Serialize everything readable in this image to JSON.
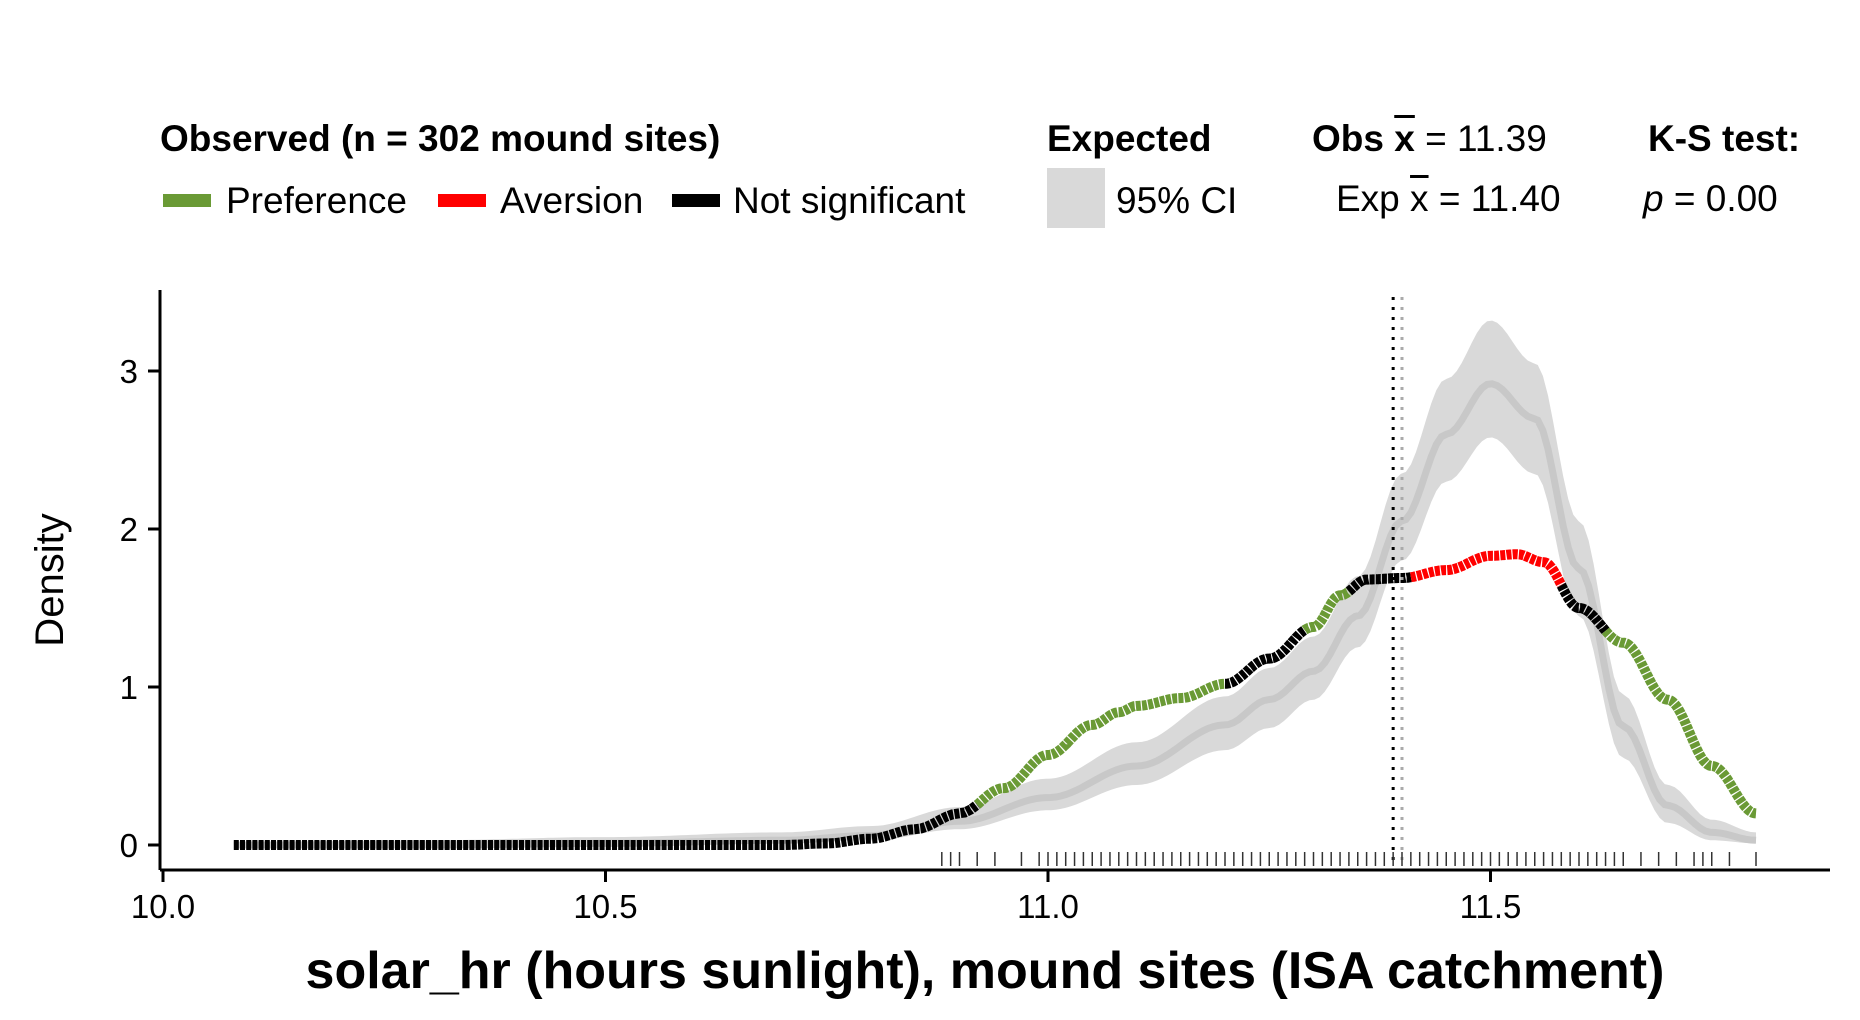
{
  "legend": {
    "observed_title": "Observed (n = 302 mound sites)",
    "items": [
      {
        "label": "Preference",
        "color": "#6a9a35"
      },
      {
        "label": "Aversion",
        "color": "#ff0000"
      },
      {
        "label": "Not significant",
        "color": "#000000"
      }
    ],
    "expected_title": "Expected",
    "ci_label": "95% CI",
    "ci_color": "#d9d9d9",
    "obs_mean_prefix": "Obs ",
    "obs_mean_symbol": "x",
    "obs_mean_value": " = 11.39",
    "exp_mean_prefix": "Exp ",
    "exp_mean_symbol": "x",
    "exp_mean_value": " = 11.40",
    "ks_title": "K-S test:",
    "ks_p_symbol": "p",
    "ks_p_value": " = 0.00"
  },
  "chart_data": {
    "type": "line",
    "xlabel": "solar_hr (hours sunlight), mound sites (ISA catchment)",
    "ylabel": "Density",
    "xlim": [
      10.0,
      11.9
    ],
    "ylim": [
      0,
      3.5
    ],
    "x_ticks": [
      "10.0",
      "10.5",
      "11.0",
      "11.5"
    ],
    "y_ticks": [
      "0",
      "1",
      "2",
      "3"
    ],
    "obs_mean": 11.39,
    "exp_mean": 11.4,
    "observed_density": {
      "x": [
        10.08,
        10.3,
        10.5,
        10.7,
        10.75,
        10.8,
        10.85,
        10.9,
        10.95,
        11.0,
        11.05,
        11.08,
        11.1,
        11.15,
        11.2,
        11.25,
        11.3,
        11.33,
        11.36,
        11.4,
        11.45,
        11.5,
        11.53,
        11.56,
        11.6,
        11.65,
        11.7,
        11.75,
        11.8
      ],
      "y": [
        0.0,
        0.0,
        0.0,
        0.0,
        0.01,
        0.04,
        0.1,
        0.2,
        0.36,
        0.57,
        0.76,
        0.84,
        0.88,
        0.93,
        1.02,
        1.18,
        1.38,
        1.58,
        1.68,
        1.69,
        1.74,
        1.83,
        1.84,
        1.79,
        1.5,
        1.28,
        0.92,
        0.5,
        0.2
      ]
    },
    "significance_segments": [
      {
        "from": 10.08,
        "to": 10.92,
        "class": "Not significant"
      },
      {
        "from": 10.92,
        "to": 11.2,
        "class": "Preference"
      },
      {
        "from": 11.2,
        "to": 11.29,
        "class": "Not significant"
      },
      {
        "from": 11.29,
        "to": 11.34,
        "class": "Preference"
      },
      {
        "from": 11.34,
        "to": 11.41,
        "class": "Not significant"
      },
      {
        "from": 11.41,
        "to": 11.58,
        "class": "Aversion"
      },
      {
        "from": 11.58,
        "to": 11.63,
        "class": "Not significant"
      },
      {
        "from": 11.63,
        "to": 11.8,
        "class": "Preference"
      }
    ],
    "expected_density": {
      "x": [
        10.08,
        10.3,
        10.5,
        10.7,
        10.8,
        10.9,
        11.0,
        11.1,
        11.2,
        11.25,
        11.3,
        11.35,
        11.4,
        11.45,
        11.5,
        11.55,
        11.6,
        11.65,
        11.7,
        11.75,
        11.8
      ],
      "y": [
        0.0,
        0.0,
        0.01,
        0.03,
        0.06,
        0.15,
        0.3,
        0.5,
        0.76,
        0.92,
        1.1,
        1.45,
        2.05,
        2.6,
        2.92,
        2.7,
        1.75,
        0.75,
        0.25,
        0.08,
        0.03
      ],
      "lower": [
        0.0,
        0.0,
        0.0,
        0.01,
        0.03,
        0.1,
        0.22,
        0.38,
        0.6,
        0.74,
        0.92,
        1.25,
        1.8,
        2.3,
        2.58,
        2.35,
        1.45,
        0.55,
        0.14,
        0.03,
        0.01
      ],
      "upper": [
        0.02,
        0.03,
        0.05,
        0.08,
        0.12,
        0.24,
        0.42,
        0.65,
        0.94,
        1.12,
        1.32,
        1.7,
        2.35,
        2.95,
        3.32,
        3.05,
        2.05,
        0.95,
        0.38,
        0.16,
        0.08
      ]
    },
    "rug_x": [
      10.88,
      10.89,
      10.9,
      10.92,
      10.94,
      10.97,
      10.99,
      11.0,
      11.01,
      11.02,
      11.03,
      11.04,
      11.05,
      11.06,
      11.07,
      11.08,
      11.09,
      11.1,
      11.11,
      11.12,
      11.13,
      11.14,
      11.15,
      11.16,
      11.17,
      11.18,
      11.19,
      11.2,
      11.21,
      11.22,
      11.23,
      11.24,
      11.25,
      11.26,
      11.27,
      11.28,
      11.29,
      11.3,
      11.31,
      11.32,
      11.33,
      11.34,
      11.35,
      11.36,
      11.37,
      11.38,
      11.39,
      11.4,
      11.41,
      11.42,
      11.43,
      11.44,
      11.45,
      11.46,
      11.47,
      11.48,
      11.49,
      11.5,
      11.51,
      11.52,
      11.53,
      11.54,
      11.55,
      11.56,
      11.57,
      11.58,
      11.59,
      11.6,
      11.61,
      11.62,
      11.63,
      11.64,
      11.65,
      11.67,
      11.69,
      11.71,
      11.73,
      11.74,
      11.75,
      11.77,
      11.8
    ]
  }
}
